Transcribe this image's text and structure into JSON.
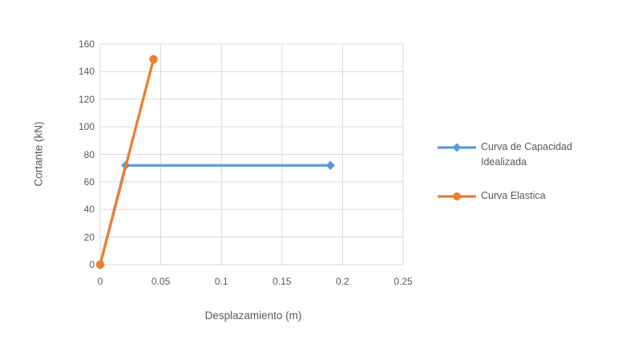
{
  "chart_data": {
    "type": "line",
    "title": "",
    "xlabel": "Desplazamiento (m)",
    "ylabel": "Cortante (kN)",
    "xlim": [
      0,
      0.25
    ],
    "ylim": [
      0,
      160
    ],
    "x_tick_values": [
      0,
      0.05,
      0.1,
      0.15,
      0.2,
      0.25
    ],
    "x_tick_labels": [
      "0",
      "0.05",
      "0.1",
      "0.15",
      "0.2",
      "0.25"
    ],
    "y_tick_values": [
      0,
      20,
      40,
      60,
      80,
      100,
      120,
      140,
      160
    ],
    "y_tick_labels": [
      "0",
      "20",
      "40",
      "60",
      "80",
      "100",
      "120",
      "140",
      "160"
    ],
    "grid": true,
    "legend_position": "right",
    "series": [
      {
        "name": "Curva de Capacidad Idealizada",
        "color": "#5B9BD5",
        "marker": "diamond",
        "points": [
          [
            0,
            0
          ],
          [
            0.021,
            72
          ],
          [
            0.19,
            72
          ]
        ]
      },
      {
        "name": "Curva Elastica",
        "color": "#ED7D31",
        "marker": "circle",
        "points": [
          [
            0,
            0
          ],
          [
            0.044,
            149
          ]
        ]
      }
    ],
    "colors": {
      "gridline": "#D9D9D9",
      "text": "#595959",
      "background": "#FFFFFF"
    }
  }
}
